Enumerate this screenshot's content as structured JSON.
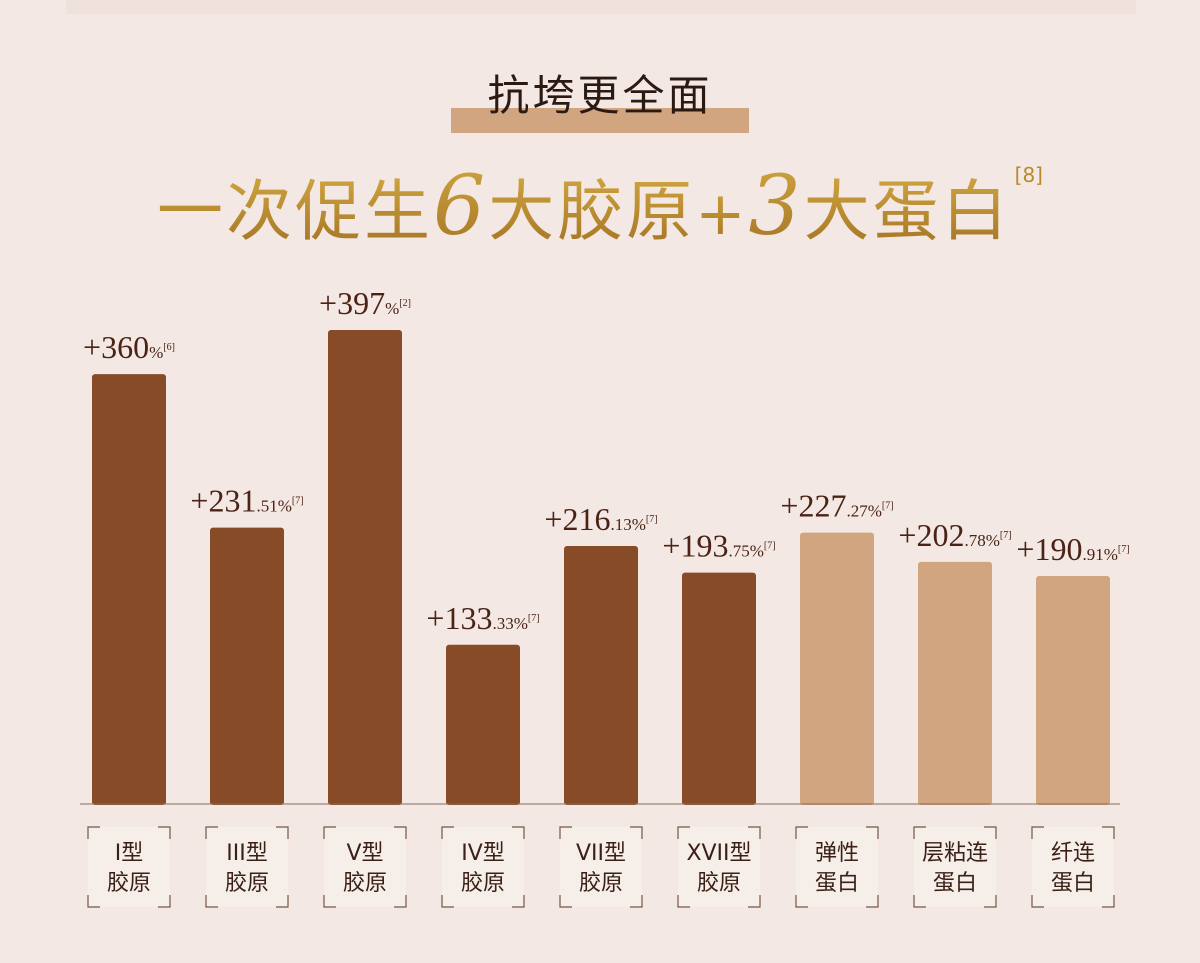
{
  "header": {
    "subtitle": "抗垮更全面",
    "title_part1": "一次促生",
    "title_num1": "6",
    "title_part2": "大胶原",
    "title_plus": "+",
    "title_num2": "3",
    "title_part3": "大蛋白",
    "title_ref": "[8]"
  },
  "colors": {
    "collagen_bar": "#874b28",
    "protein_bar": "#d0a57f",
    "title_gold": "#b98a2b",
    "label_text": "#4b2316"
  },
  "chart_data": {
    "type": "bar",
    "ylim": [
      0,
      430
    ],
    "bars": [
      {
        "cat1": "I型",
        "cat2": "胶原",
        "value": 360,
        "int": "+360",
        "dec": "",
        "unit": "%",
        "ref": "[6]",
        "group": "collagen"
      },
      {
        "cat1": "III型",
        "cat2": "胶原",
        "value": 231.51,
        "int": "+231",
        "dec": ".51",
        "unit": "%",
        "ref": "[7]",
        "group": "collagen"
      },
      {
        "cat1": "V型",
        "cat2": "胶原",
        "value": 397,
        "int": "+397",
        "dec": "",
        "unit": "%",
        "ref": "[2]",
        "group": "collagen"
      },
      {
        "cat1": "IV型",
        "cat2": "胶原",
        "value": 133.33,
        "int": "+133",
        "dec": ".33",
        "unit": "%",
        "ref": "[7]",
        "group": "collagen"
      },
      {
        "cat1": "VII型",
        "cat2": "胶原",
        "value": 216.13,
        "int": "+216",
        "dec": ".13",
        "unit": "%",
        "ref": "[7]",
        "group": "collagen"
      },
      {
        "cat1": "XVII型",
        "cat2": "胶原",
        "value": 193.75,
        "int": "+193",
        "dec": ".75",
        "unit": "%",
        "ref": "[7]",
        "group": "collagen"
      },
      {
        "cat1": "弹性",
        "cat2": "蛋白",
        "value": 227.27,
        "int": "+227",
        "dec": ".27",
        "unit": "%",
        "ref": "[7]",
        "group": "protein"
      },
      {
        "cat1": "层粘连",
        "cat2": "蛋白",
        "value": 202.78,
        "int": "+202",
        "dec": ".78",
        "unit": "%",
        "ref": "[7]",
        "group": "protein"
      },
      {
        "cat1": "纤连",
        "cat2": "蛋白",
        "value": 190.91,
        "int": "+190",
        "dec": ".91",
        "unit": "%",
        "ref": "[7]",
        "group": "protein"
      }
    ]
  }
}
